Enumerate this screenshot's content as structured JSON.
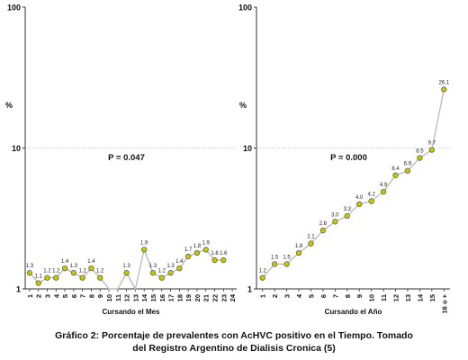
{
  "caption": {
    "line1": "Gráfico 2: Porcentaje de prevalentes con AcHVC positivo en el Tiempo. Tomado",
    "line2": "del Registro Argentino de Dialisis Cronica (5)"
  },
  "chart_data": [
    {
      "type": "line",
      "panel": "left",
      "xlabel": "Cursando el Mes",
      "ylabel": "%",
      "yscale": "log",
      "ylim": [
        1,
        100
      ],
      "yticks": [
        "1",
        "10",
        "100"
      ],
      "grid": "dotted line at 10",
      "annotation": "P = 0.047",
      "categories": [
        "1",
        "2",
        "3",
        "4",
        "5",
        "6",
        "7",
        "8",
        "9",
        "10",
        "11",
        "12",
        "13",
        "14",
        "15",
        "16",
        "17",
        "18",
        "19",
        "20",
        "21",
        "22",
        "23",
        "24"
      ],
      "values": [
        1.3,
        1.1,
        1.2,
        1.2,
        1.4,
        1.3,
        1.2,
        1.4,
        1.2,
        0.6,
        0.6,
        1.3,
        0.6,
        1.9,
        1.3,
        1.2,
        1.3,
        1.4,
        1.7,
        1.8,
        1.9,
        1.6,
        1.6,
        null
      ],
      "data_labels": [
        "1.3",
        "1.1",
        "1.2",
        "1.2",
        "1.4",
        "1.3",
        "1.2",
        "1.4",
        "1.2",
        "",
        "",
        "1.3",
        "",
        "1.9",
        "1.3",
        "1.2",
        "1.3",
        "1.4",
        "1.7",
        "1.8",
        "1.9",
        "1.6",
        "1.6",
        ""
      ],
      "marker_color": "#c8c800",
      "line_color": "#bdbdbd"
    },
    {
      "type": "line",
      "panel": "right",
      "xlabel": "Cursando el Año",
      "ylabel": "",
      "yscale": "log",
      "ylim": [
        1,
        100
      ],
      "yticks": [
        "1",
        "10",
        "100"
      ],
      "grid": "dotted line at 10",
      "annotation": "P = 0.000",
      "categories": [
        "1",
        "2",
        "3",
        "4",
        "5",
        "6",
        "7",
        "8",
        "9",
        "10",
        "11",
        "12",
        "13",
        "14",
        "15",
        "16 o +"
      ],
      "values": [
        1.2,
        1.5,
        1.5,
        1.8,
        2.1,
        2.6,
        3.0,
        3.3,
        4.0,
        4.2,
        4.9,
        6.4,
        6.9,
        8.5,
        9.7,
        26.1
      ],
      "data_labels": [
        "1.2",
        "1.5",
        "1.5",
        "1.8",
        "2.1",
        "2.6",
        "3.0",
        "3.3",
        "4.0",
        "4.2",
        "4.9",
        "6.4",
        "6.9",
        "8.5",
        "9.7",
        "26.1"
      ],
      "marker_color": "#c8c800",
      "line_color": "#bdbdbd"
    }
  ]
}
